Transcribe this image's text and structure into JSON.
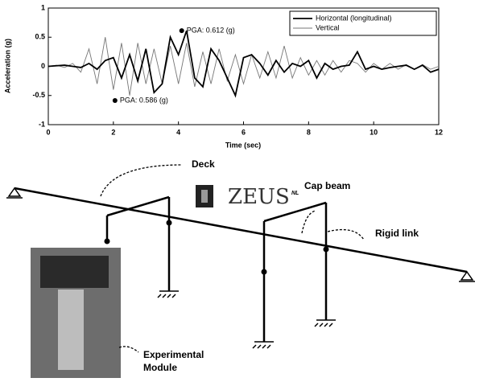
{
  "chart_data": {
    "type": "line",
    "xlabel": "Time (sec)",
    "ylabel": "Acceleration (g)",
    "x": [
      0,
      0.25,
      0.5,
      0.75,
      1,
      1.25,
      1.5,
      1.75,
      2,
      2.25,
      2.5,
      2.75,
      3,
      3.25,
      3.5,
      3.75,
      4,
      4.25,
      4.5,
      4.75,
      5,
      5.25,
      5.5,
      5.75,
      6,
      6.25,
      6.5,
      6.75,
      7,
      7.25,
      7.5,
      7.75,
      8,
      8.25,
      8.5,
      8.75,
      9,
      9.25,
      9.5,
      9.75,
      10,
      10.25,
      10.5,
      10.75,
      11,
      11.25,
      11.5,
      11.75,
      12
    ],
    "series": [
      {
        "name": "Horizontal (longitudinal)",
        "color": "#000000",
        "values": [
          0,
          0.01,
          0.02,
          0,
          -0.02,
          0.05,
          -0.05,
          0.1,
          0.15,
          -0.2,
          0.2,
          -0.25,
          0.3,
          -0.45,
          -0.3,
          0.5,
          0.2,
          0.612,
          -0.2,
          -0.35,
          0.3,
          0.1,
          -0.2,
          -0.5,
          0.15,
          0.2,
          0.05,
          -0.15,
          0.1,
          -0.1,
          0.05,
          0,
          0.1,
          -0.2,
          0.05,
          -0.05,
          0,
          0.02,
          0.25,
          -0.05,
          0,
          -0.05,
          -0.02,
          0,
          0.02,
          -0.05,
          0.02,
          -0.1,
          -0.05
        ]
      },
      {
        "name": "Vertical",
        "color": "#777777",
        "values": [
          0,
          0.02,
          -0.02,
          0.05,
          -0.1,
          0.3,
          -0.3,
          0.5,
          -0.4,
          0.4,
          -0.5,
          0.4,
          -0.3,
          0.3,
          -0.3,
          0.35,
          -0.3,
          0.4,
          -0.35,
          0.25,
          -0.3,
          0.3,
          -0.25,
          0.2,
          -0.3,
          0.2,
          -0.2,
          0.25,
          -0.2,
          0.35,
          -0.2,
          0.15,
          -0.15,
          0.1,
          -0.15,
          0.1,
          -0.1,
          0.1,
          0.05,
          -0.1,
          0.05,
          -0.05,
          0.05,
          -0.05,
          0.03,
          -0.05,
          0.03,
          -0.05,
          0
        ]
      }
    ],
    "annotations": [
      {
        "x": 4.1,
        "y": 0.612,
        "text": "PGA: 0.612 (g)"
      },
      {
        "x": 2.05,
        "y": -0.586,
        "text": "PGA: 0.586 (g)"
      }
    ],
    "xlim": [
      0,
      12
    ],
    "xticks": [
      0,
      2,
      4,
      6,
      8,
      10,
      12
    ],
    "ylim": [
      -1,
      1
    ],
    "yticks": [
      -1,
      -0.5,
      0,
      0.5,
      1
    ],
    "legend": "upper right"
  },
  "diagram": {
    "deck": "Deck",
    "cap_beam": "Cap beam",
    "rigid_link": "Rigid link",
    "experimental_module": [
      "Experimental",
      "Module"
    ],
    "logo": "ZEUS",
    "logo_sup": "NL"
  }
}
